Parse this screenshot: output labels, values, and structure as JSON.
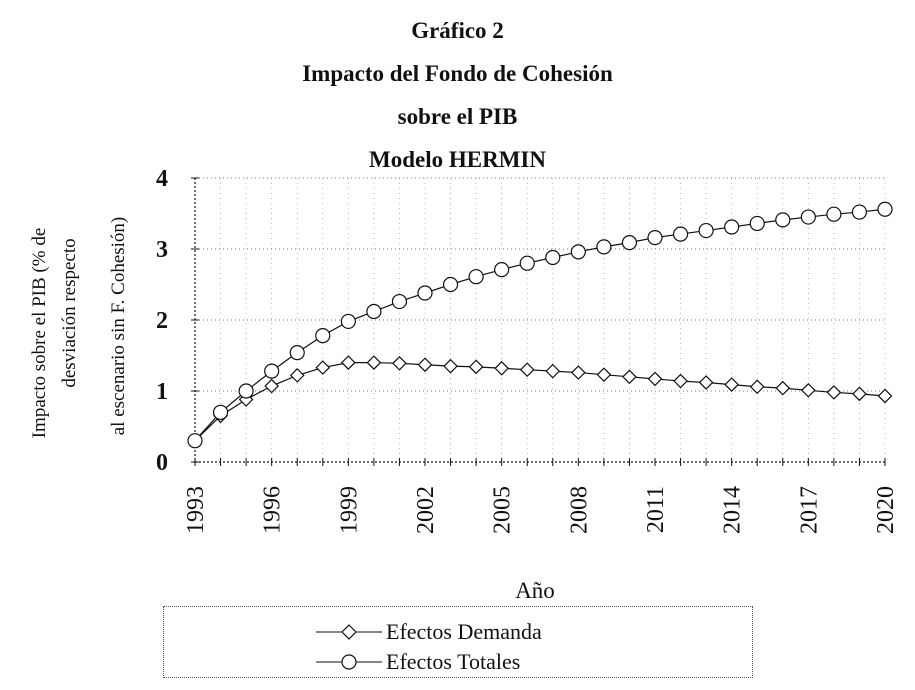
{
  "header": {
    "title_lines": [
      "Gráfico 2",
      "Impacto del Fondo de Cohesión",
      "sobre el PIB",
      "Modelo HERMIN"
    ]
  },
  "chart_data": {
    "type": "line",
    "title": "Gráfico 2 Impacto del Fondo de Cohesión sobre el PIB Modelo HERMIN",
    "ylabel_lines": [
      "Impacto sobre el  PIB (% de",
      "desviación respecto",
      "al escenario sin F.  Cohesión)"
    ],
    "xlabel": "Año",
    "ylim": [
      0,
      4
    ],
    "yticks": [
      "0",
      "1",
      "2",
      "3",
      "4"
    ],
    "xticks": [
      "1993",
      "1996",
      "1999",
      "2002",
      "2005",
      "2008",
      "2011",
      "2014",
      "2017",
      "2020"
    ],
    "x": [
      1993,
      1994,
      1995,
      1996,
      1997,
      1998,
      1999,
      2000,
      2001,
      2002,
      2003,
      2004,
      2005,
      2006,
      2007,
      2008,
      2009,
      2010,
      2011,
      2012,
      2013,
      2014,
      2015,
      2016,
      2017,
      2018,
      2019,
      2020
    ],
    "series": [
      {
        "name": "Efectos Demanda",
        "marker": "diamond",
        "values": [
          0.3,
          0.65,
          0.88,
          1.07,
          1.22,
          1.33,
          1.4,
          1.4,
          1.39,
          1.37,
          1.35,
          1.34,
          1.32,
          1.3,
          1.28,
          1.26,
          1.23,
          1.2,
          1.17,
          1.14,
          1.12,
          1.09,
          1.06,
          1.04,
          1.01,
          0.98,
          0.96,
          0.93
        ]
      },
      {
        "name": "Efectos Totales",
        "marker": "circle",
        "values": [
          0.3,
          0.7,
          1.0,
          1.28,
          1.54,
          1.78,
          1.98,
          2.12,
          2.26,
          2.38,
          2.5,
          2.61,
          2.71,
          2.8,
          2.88,
          2.96,
          3.03,
          3.09,
          3.16,
          3.21,
          3.26,
          3.31,
          3.36,
          3.41,
          3.45,
          3.49,
          3.52,
          3.56
        ]
      }
    ],
    "grid": "dotted",
    "legend_position": "bottom"
  }
}
